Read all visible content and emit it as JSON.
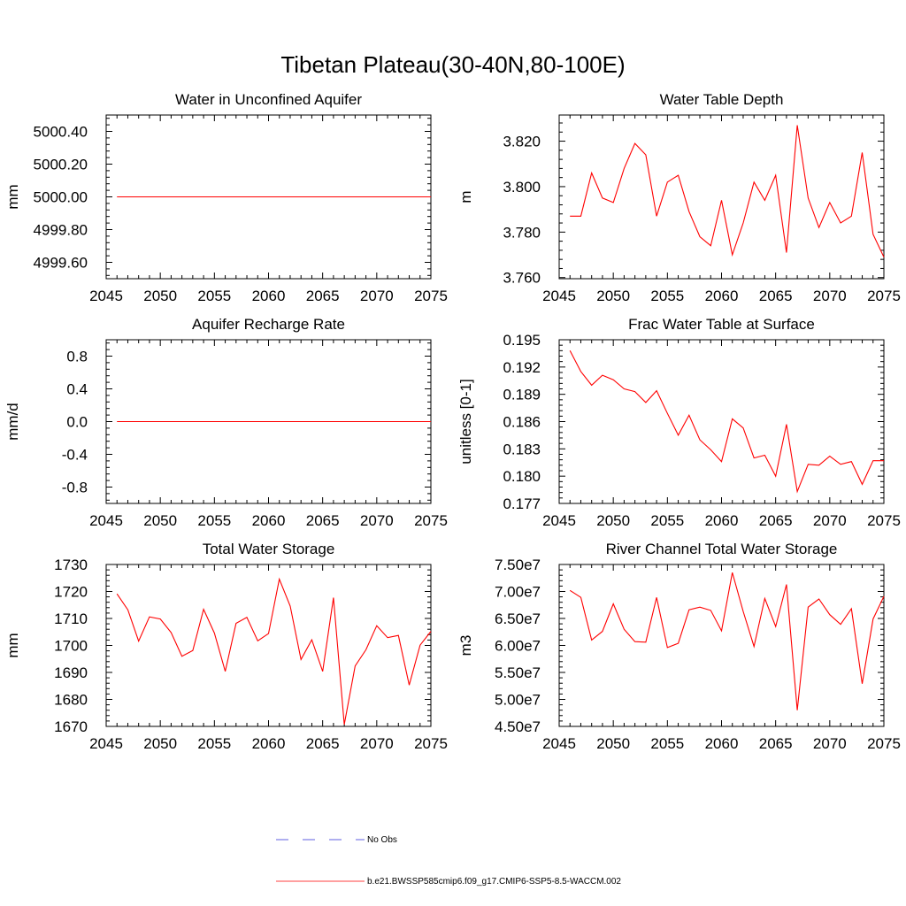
{
  "figure_title": "Tibetan Plateau(30-40N,80-100E)",
  "colors": {
    "model": "#ff0000",
    "obs": "#2b2bd8",
    "axis": "#000000"
  },
  "legend": {
    "obs_label": "No Obs",
    "model_label": "b.e21.BWSSP585cmip6.f09_g17.CMIP6-SSP5-8.5-WACCM.002"
  },
  "chart_data": [
    {
      "type": "line",
      "title": "Water in Unconfined Aquifer",
      "ylabel": "mm",
      "xlim": [
        2045,
        2075
      ],
      "ylim": [
        4999.5,
        5000.5
      ],
      "xticks": [
        2045,
        2050,
        2055,
        2060,
        2065,
        2070,
        2075
      ],
      "yticks": [
        "4999.60",
        "4999.80",
        "5000.00",
        "5000.20",
        "5000.40"
      ],
      "x": [
        2046,
        2047,
        2048,
        2049,
        2050,
        2051,
        2052,
        2053,
        2054,
        2055,
        2056,
        2057,
        2058,
        2059,
        2060,
        2061,
        2062,
        2063,
        2064,
        2065,
        2066,
        2067,
        2068,
        2069,
        2070,
        2071,
        2072,
        2073,
        2074,
        2075
      ],
      "y": [
        5000.0,
        5000.0,
        5000.0,
        5000.0,
        5000.0,
        5000.0,
        5000.0,
        5000.0,
        5000.0,
        5000.0,
        5000.0,
        5000.0,
        5000.0,
        5000.0,
        5000.0,
        5000.0,
        5000.0,
        5000.0,
        5000.0,
        5000.0,
        5000.0,
        5000.0,
        5000.0,
        5000.0,
        5000.0,
        5000.0,
        5000.0,
        5000.0,
        5000.0,
        5000.0
      ]
    },
    {
      "type": "line",
      "title": "Water Table Depth",
      "ylabel": "m",
      "xlim": [
        2045,
        2075
      ],
      "ylim": [
        3.7595,
        3.8315
      ],
      "xticks": [
        2045,
        2050,
        2055,
        2060,
        2065,
        2070,
        2075
      ],
      "yticks": [
        "3.760",
        "3.780",
        "3.800",
        "3.820"
      ],
      "x": [
        2046,
        2047,
        2048,
        2049,
        2050,
        2051,
        2052,
        2053,
        2054,
        2055,
        2056,
        2057,
        2058,
        2059,
        2060,
        2061,
        2062,
        2063,
        2064,
        2065,
        2066,
        2067,
        2068,
        2069,
        2070,
        2071,
        2072,
        2073,
        2074,
        2075
      ],
      "y": [
        3.787,
        3.787,
        3.806,
        3.795,
        3.793,
        3.808,
        3.819,
        3.814,
        3.787,
        3.802,
        3.805,
        3.789,
        3.778,
        3.774,
        3.794,
        3.77,
        3.784,
        3.802,
        3.794,
        3.805,
        3.771,
        3.827,
        3.795,
        3.782,
        3.793,
        3.784,
        3.787,
        3.815,
        3.779,
        3.769
      ]
    },
    {
      "type": "line",
      "title": "Aquifer Recharge Rate",
      "ylabel": "mm/d",
      "xlim": [
        2045,
        2075
      ],
      "ylim": [
        -1.0,
        1.0
      ],
      "xticks": [
        2045,
        2050,
        2055,
        2060,
        2065,
        2070,
        2075
      ],
      "yticks": [
        "-0.8",
        "-0.4",
        "0.0",
        "0.4",
        "0.8"
      ],
      "x": [
        2046,
        2047,
        2048,
        2049,
        2050,
        2051,
        2052,
        2053,
        2054,
        2055,
        2056,
        2057,
        2058,
        2059,
        2060,
        2061,
        2062,
        2063,
        2064,
        2065,
        2066,
        2067,
        2068,
        2069,
        2070,
        2071,
        2072,
        2073,
        2074,
        2075
      ],
      "y": [
        0,
        0,
        0,
        0,
        0,
        0,
        0,
        0,
        0,
        0,
        0,
        0,
        0,
        0,
        0,
        0,
        0,
        0,
        0,
        0,
        0,
        0,
        0,
        0,
        0,
        0,
        0,
        0,
        0,
        0
      ]
    },
    {
      "type": "line",
      "title": "Frac Water Table at Surface",
      "ylabel": "unitless [0-1]",
      "xlim": [
        2045,
        2075
      ],
      "ylim": [
        0.177,
        0.195
      ],
      "xticks": [
        2045,
        2050,
        2055,
        2060,
        2065,
        2070,
        2075
      ],
      "yticks": [
        "0.177",
        "0.180",
        "0.183",
        "0.186",
        "0.189",
        "0.192",
        "0.195"
      ],
      "x": [
        2046,
        2047,
        2048,
        2049,
        2050,
        2051,
        2052,
        2053,
        2054,
        2055,
        2056,
        2057,
        2058,
        2059,
        2060,
        2061,
        2062,
        2063,
        2064,
        2065,
        2066,
        2067,
        2068,
        2069,
        2070,
        2071,
        2072,
        2073,
        2074,
        2075
      ],
      "y": [
        0.1938,
        0.1915,
        0.19,
        0.1911,
        0.1906,
        0.1896,
        0.1893,
        0.1881,
        0.1894,
        0.1869,
        0.1845,
        0.1867,
        0.184,
        0.1829,
        0.1816,
        0.1863,
        0.1853,
        0.182,
        0.1823,
        0.18,
        0.1857,
        0.1783,
        0.1813,
        0.1812,
        0.1822,
        0.1813,
        0.1816,
        0.1791,
        0.1817,
        0.1817
      ]
    },
    {
      "type": "line",
      "title": "Total Water Storage",
      "ylabel": "mm",
      "xlim": [
        2045,
        2075
      ],
      "ylim": [
        1670,
        1730
      ],
      "xticks": [
        2045,
        2050,
        2055,
        2060,
        2065,
        2070,
        2075
      ],
      "yticks": [
        "1670",
        "1680",
        "1690",
        "1700",
        "1710",
        "1720",
        "1730"
      ],
      "x": [
        2046,
        2047,
        2048,
        2049,
        2050,
        2051,
        2052,
        2053,
        2054,
        2055,
        2056,
        2057,
        2058,
        2059,
        2060,
        2061,
        2062,
        2063,
        2064,
        2065,
        2066,
        2067,
        2068,
        2069,
        2070,
        2071,
        2072,
        2073,
        2074,
        2075
      ],
      "y": [
        1719.1,
        1713.2,
        1701.6,
        1710.6,
        1709.8,
        1704.8,
        1696.0,
        1698.1,
        1713.4,
        1704.6,
        1690.4,
        1708.2,
        1710.4,
        1701.7,
        1704.4,
        1724.6,
        1714.6,
        1694.8,
        1702.1,
        1690.4,
        1717.7,
        1670.7,
        1692.4,
        1698.4,
        1707.3,
        1702.9,
        1703.7,
        1685.3,
        1700.1,
        1705.2
      ]
    },
    {
      "type": "line",
      "title": "River Channel Total Water Storage",
      "ylabel": "m3",
      "xlim": [
        2045,
        2075
      ],
      "ylim": [
        45000000,
        75000000
      ],
      "xticks": [
        2045,
        2050,
        2055,
        2060,
        2065,
        2070,
        2075
      ],
      "yticks": [
        "4.50e7",
        "5.00e7",
        "5.50e7",
        "6.00e7",
        "6.50e7",
        "7.00e7",
        "7.50e7"
      ],
      "x": [
        2046,
        2047,
        2048,
        2049,
        2050,
        2051,
        2052,
        2053,
        2054,
        2055,
        2056,
        2057,
        2058,
        2059,
        2060,
        2061,
        2062,
        2063,
        2064,
        2065,
        2066,
        2067,
        2068,
        2069,
        2070,
        2071,
        2072,
        2073,
        2074,
        2075
      ],
      "y": [
        70200000,
        68900000,
        61000000,
        62600000,
        67700000,
        63000000,
        60700000,
        60600000,
        68900000,
        59600000,
        60400000,
        66600000,
        67100000,
        66500000,
        62700000,
        73500000,
        66300000,
        59800000,
        68700000,
        63500000,
        71300000,
        48000000,
        67100000,
        68600000,
        65700000,
        63900000,
        66800000,
        52900000,
        64900000,
        69100000
      ]
    }
  ]
}
